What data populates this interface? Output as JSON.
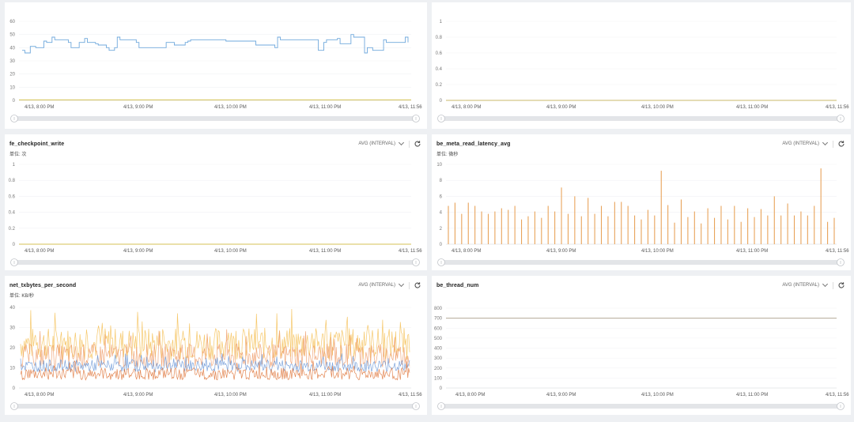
{
  "icons": {
    "refresh": "refresh-icon",
    "dropdown": "chevron-down-icon"
  },
  "panels": [
    {
      "id": "p1",
      "title": "",
      "unit": "",
      "aggregation": "",
      "chart_data": {
        "type": "line",
        "x_ticks": [
          "4/13, 8:00 PM",
          "4/13, 9:00 PM",
          "4/13, 10:00 PM",
          "4/13, 11:00 PM",
          "4/13, 11:56"
        ],
        "y_ticks": [
          "0",
          "10",
          "20",
          "30",
          "40",
          "50",
          "60"
        ],
        "ylim": [
          0,
          60
        ],
        "series": [
          {
            "color": "#6fa8dc",
            "style": "step",
            "values": [
              38,
              36,
              36,
              41,
              41,
              40,
              40,
              40,
              45,
              44,
              44,
              48,
              46,
              46,
              46,
              46,
              46,
              44,
              40,
              40,
              40,
              44,
              44,
              47,
              44,
              44,
              44,
              43,
              42,
              42,
              42,
              40,
              38,
              38,
              40,
              48,
              46,
              46,
              46,
              46,
              46,
              46,
              44,
              40,
              40,
              40,
              40,
              40,
              40,
              40,
              40,
              40,
              40,
              44,
              44,
              44,
              42,
              42,
              42,
              42,
              44,
              45,
              46,
              46,
              46,
              46,
              46,
              46,
              46,
              46,
              46,
              46,
              46,
              46,
              46,
              45,
              45,
              45,
              45,
              45,
              45,
              45,
              45,
              45,
              45,
              45,
              42,
              42,
              42,
              42,
              42,
              42,
              42,
              40,
              48,
              46,
              46,
              46,
              46,
              46,
              46,
              46,
              46,
              46,
              46,
              46,
              46,
              46,
              46,
              38,
              38,
              44,
              46,
              46,
              46,
              46,
              47,
              43,
              43,
              43,
              43,
              50,
              48,
              48,
              48,
              48,
              36,
              40,
              40,
              38,
              38,
              38,
              38,
              46,
              44,
              44,
              44,
              44,
              44,
              44,
              44,
              48,
              44
            ]
          },
          {
            "color": "#d6c254",
            "style": "line",
            "values": [
              0.4,
              0.4
            ]
          }
        ]
      }
    },
    {
      "id": "p2",
      "title": "",
      "unit": "",
      "aggregation": "",
      "chart_data": {
        "type": "line",
        "x_ticks": [
          "4/13, 8:00 PM",
          "4/13, 9:00 PM",
          "4/13, 10:00 PM",
          "4/13, 11:00 PM",
          "4/13, 11:56"
        ],
        "y_ticks": [
          "0",
          "0.2",
          "0.4",
          "0.6",
          "0.8",
          "1"
        ],
        "ylim": [
          0,
          1
        ],
        "series": [
          {
            "color": "#c9b96a",
            "style": "line",
            "values": [
              0,
              0
            ]
          }
        ]
      }
    },
    {
      "id": "p3",
      "title": "fe_checkpoint_write",
      "unit": "单位: 次",
      "aggregation": "AVG (INTERVAL)",
      "chart_data": {
        "type": "line",
        "x_ticks": [
          "4/13, 8:00 PM",
          "4/13, 9:00 PM",
          "4/13, 10:00 PM",
          "4/13, 11:00 PM",
          "4/13, 11:56"
        ],
        "y_ticks": [
          "0",
          "0.2",
          "0.4",
          "0.6",
          "0.8",
          "1"
        ],
        "ylim": [
          0,
          1
        ],
        "series": [
          {
            "color": "#d6c254",
            "style": "line",
            "values": [
              0,
              0
            ]
          }
        ]
      }
    },
    {
      "id": "p4",
      "title": "be_meta_read_latency_avg",
      "unit": "单位: 微秒",
      "aggregation": "AVG (INTERVAL)",
      "chart_data": {
        "type": "spikes",
        "x_ticks": [
          "4/13, 8:00 PM",
          "4/13, 9:00 PM",
          "4/13, 10:00 PM",
          "4/13, 11:00 PM",
          "4/13, 11:56"
        ],
        "y_ticks": [
          "0",
          "2",
          "4",
          "6",
          "8",
          "10"
        ],
        "ylim": [
          0,
          10
        ],
        "series": [
          {
            "color": "#e8a35a",
            "values": [
              4.8,
              5.2,
              3.8,
              5.2,
              4.8,
              4.1,
              3.8,
              4.1,
              4.5,
              4.3,
              4.8,
              3.1,
              3.5,
              4.1,
              3.3,
              4.8,
              4.1,
              7.1,
              3.8,
              6.0,
              3.5,
              5.8,
              3.8,
              4.8,
              3.5,
              5.3,
              5.3,
              4.8,
              3.6,
              3.1,
              4.3,
              3.6,
              9.2,
              4.9,
              2.7,
              5.6,
              3.4,
              4.1,
              2.6,
              4.5,
              3.3,
              4.8,
              3.1,
              4.8,
              2.8,
              4.5,
              3.4,
              4.4,
              3.6,
              6.0,
              3.6,
              5.1,
              3.6,
              4.1,
              3.6,
              4.8,
              9.5,
              2.8,
              3.3
            ]
          }
        ]
      }
    },
    {
      "id": "p5",
      "title": "net_txbytes_per_second",
      "unit": "单位: KB/秒",
      "aggregation": "AVG (INTERVAL)",
      "chart_data": {
        "type": "line",
        "x_ticks": [
          "4/13, 8:00 PM",
          "4/13, 9:00 PM",
          "4/13, 10:00 PM",
          "4/13, 11:00 PM",
          "4/13, 11:56"
        ],
        "y_ticks": [
          "0",
          "10",
          "20",
          "30",
          "40"
        ],
        "ylim": [
          0,
          40
        ],
        "series": [
          {
            "color": "#f5c25b",
            "style": "noise",
            "base": 22,
            "amp": 8
          },
          {
            "color": "#f0a070",
            "style": "noise",
            "base": 16,
            "amp": 6
          },
          {
            "color": "#6f9ad8",
            "style": "noise",
            "base": 11,
            "amp": 3
          },
          {
            "color": "#e07a40",
            "style": "noise",
            "base": 7,
            "amp": 3
          }
        ]
      }
    },
    {
      "id": "p6",
      "title": "be_thread_num",
      "unit": "",
      "aggregation": "AVG (INTERVAL)",
      "chart_data": {
        "type": "line",
        "x_ticks": [
          "4/13, 8:00 PM",
          "4/13, 9:00 PM",
          "4/13, 10:00 PM",
          "4/13, 11:00 PM",
          "4/13, 11:56"
        ],
        "y_ticks": [
          "0",
          "100",
          "200",
          "300",
          "400",
          "500",
          "600",
          "700",
          "800"
        ],
        "ylim": [
          0,
          800
        ],
        "series": [
          {
            "color": "#b3aa98",
            "style": "line",
            "values": [
              700,
              700
            ]
          }
        ]
      }
    }
  ]
}
